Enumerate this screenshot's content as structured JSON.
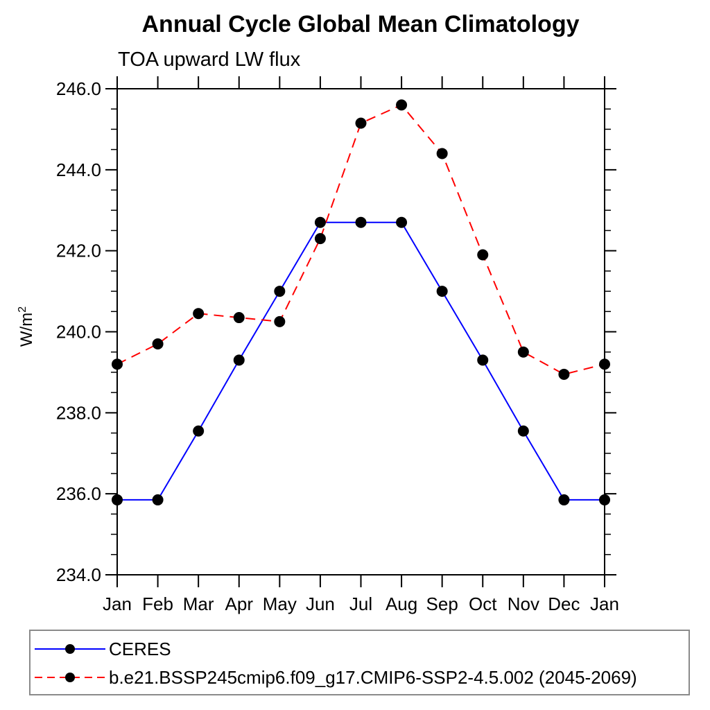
{
  "chart_data": {
    "type": "line",
    "title": "Annual Cycle Global Mean Climatology",
    "subtitle": "TOA upward LW flux",
    "ylabel_main": "W/m",
    "ylabel_sup": "2",
    "x_categories": [
      "Jan",
      "Feb",
      "Mar",
      "Apr",
      "May",
      "Jun",
      "Jul",
      "Aug",
      "Sep",
      "Oct",
      "Nov",
      "Dec",
      "Jan"
    ],
    "ylim": [
      234.0,
      246.0
    ],
    "ytick_major_step": 2.0,
    "ytick_minor_step": 0.5,
    "ytick_labels": [
      "234.0",
      "236.0",
      "238.0",
      "240.0",
      "242.0",
      "244.0",
      "246.0"
    ],
    "grid": false,
    "legend_position": "bottom",
    "axis_color": "#000000",
    "marker_color": "#000000",
    "marker_radius": 8,
    "series": [
      {
        "name": "CERES",
        "color": "#0000ff",
        "style": "solid",
        "marker": "filled-circle",
        "values": [
          235.85,
          235.85,
          237.55,
          239.3,
          241.0,
          242.7,
          242.7,
          242.7,
          241.0,
          239.3,
          237.55,
          235.85,
          235.85
        ]
      },
      {
        "name": "b.e21.BSSP245cmip6.f09_g17.CMIP6-SSP2-4.5.002 (2045-2069)",
        "color": "#ff0000",
        "style": "dashed",
        "marker": "filled-circle",
        "values": [
          239.2,
          239.7,
          240.45,
          240.35,
          240.25,
          242.3,
          245.15,
          245.6,
          244.4,
          241.9,
          239.5,
          238.95,
          239.2
        ]
      }
    ]
  }
}
